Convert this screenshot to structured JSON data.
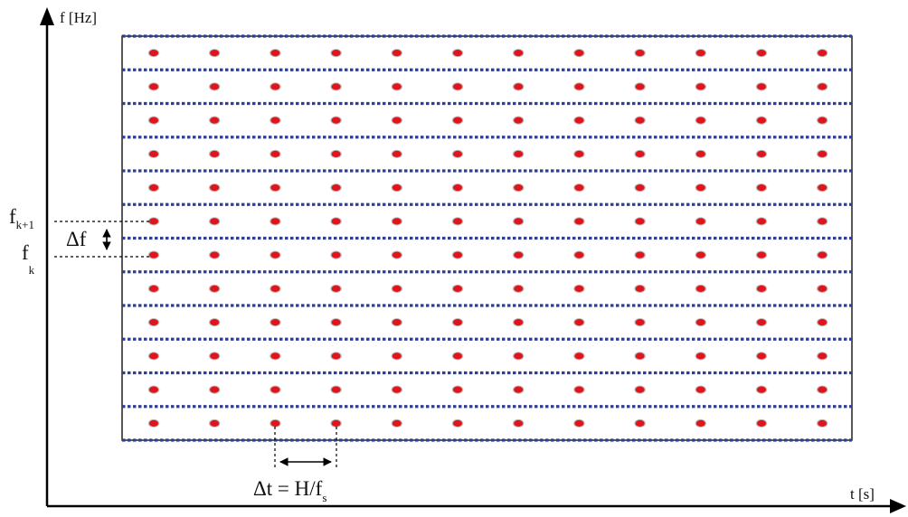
{
  "axes": {
    "y_label": "f [Hz]",
    "x_label": "t [s]"
  },
  "grid": {
    "frequency_bands": 12,
    "time_frames": 12
  },
  "annotations": {
    "f_upper_base": "f",
    "f_upper_sub": "k+1",
    "f_lower_base": "f",
    "f_lower_sub": "k",
    "delta_f": "Δf",
    "delta_t_text": "Δt = H/f",
    "delta_t_sub": "s"
  },
  "colors": {
    "axis": "#000000",
    "frame_border": "#111111",
    "band_line": "#2b3fa0",
    "point_fill": "#e0141b",
    "point_halo": "#bdbdbd",
    "guide_line": "#000000"
  }
}
